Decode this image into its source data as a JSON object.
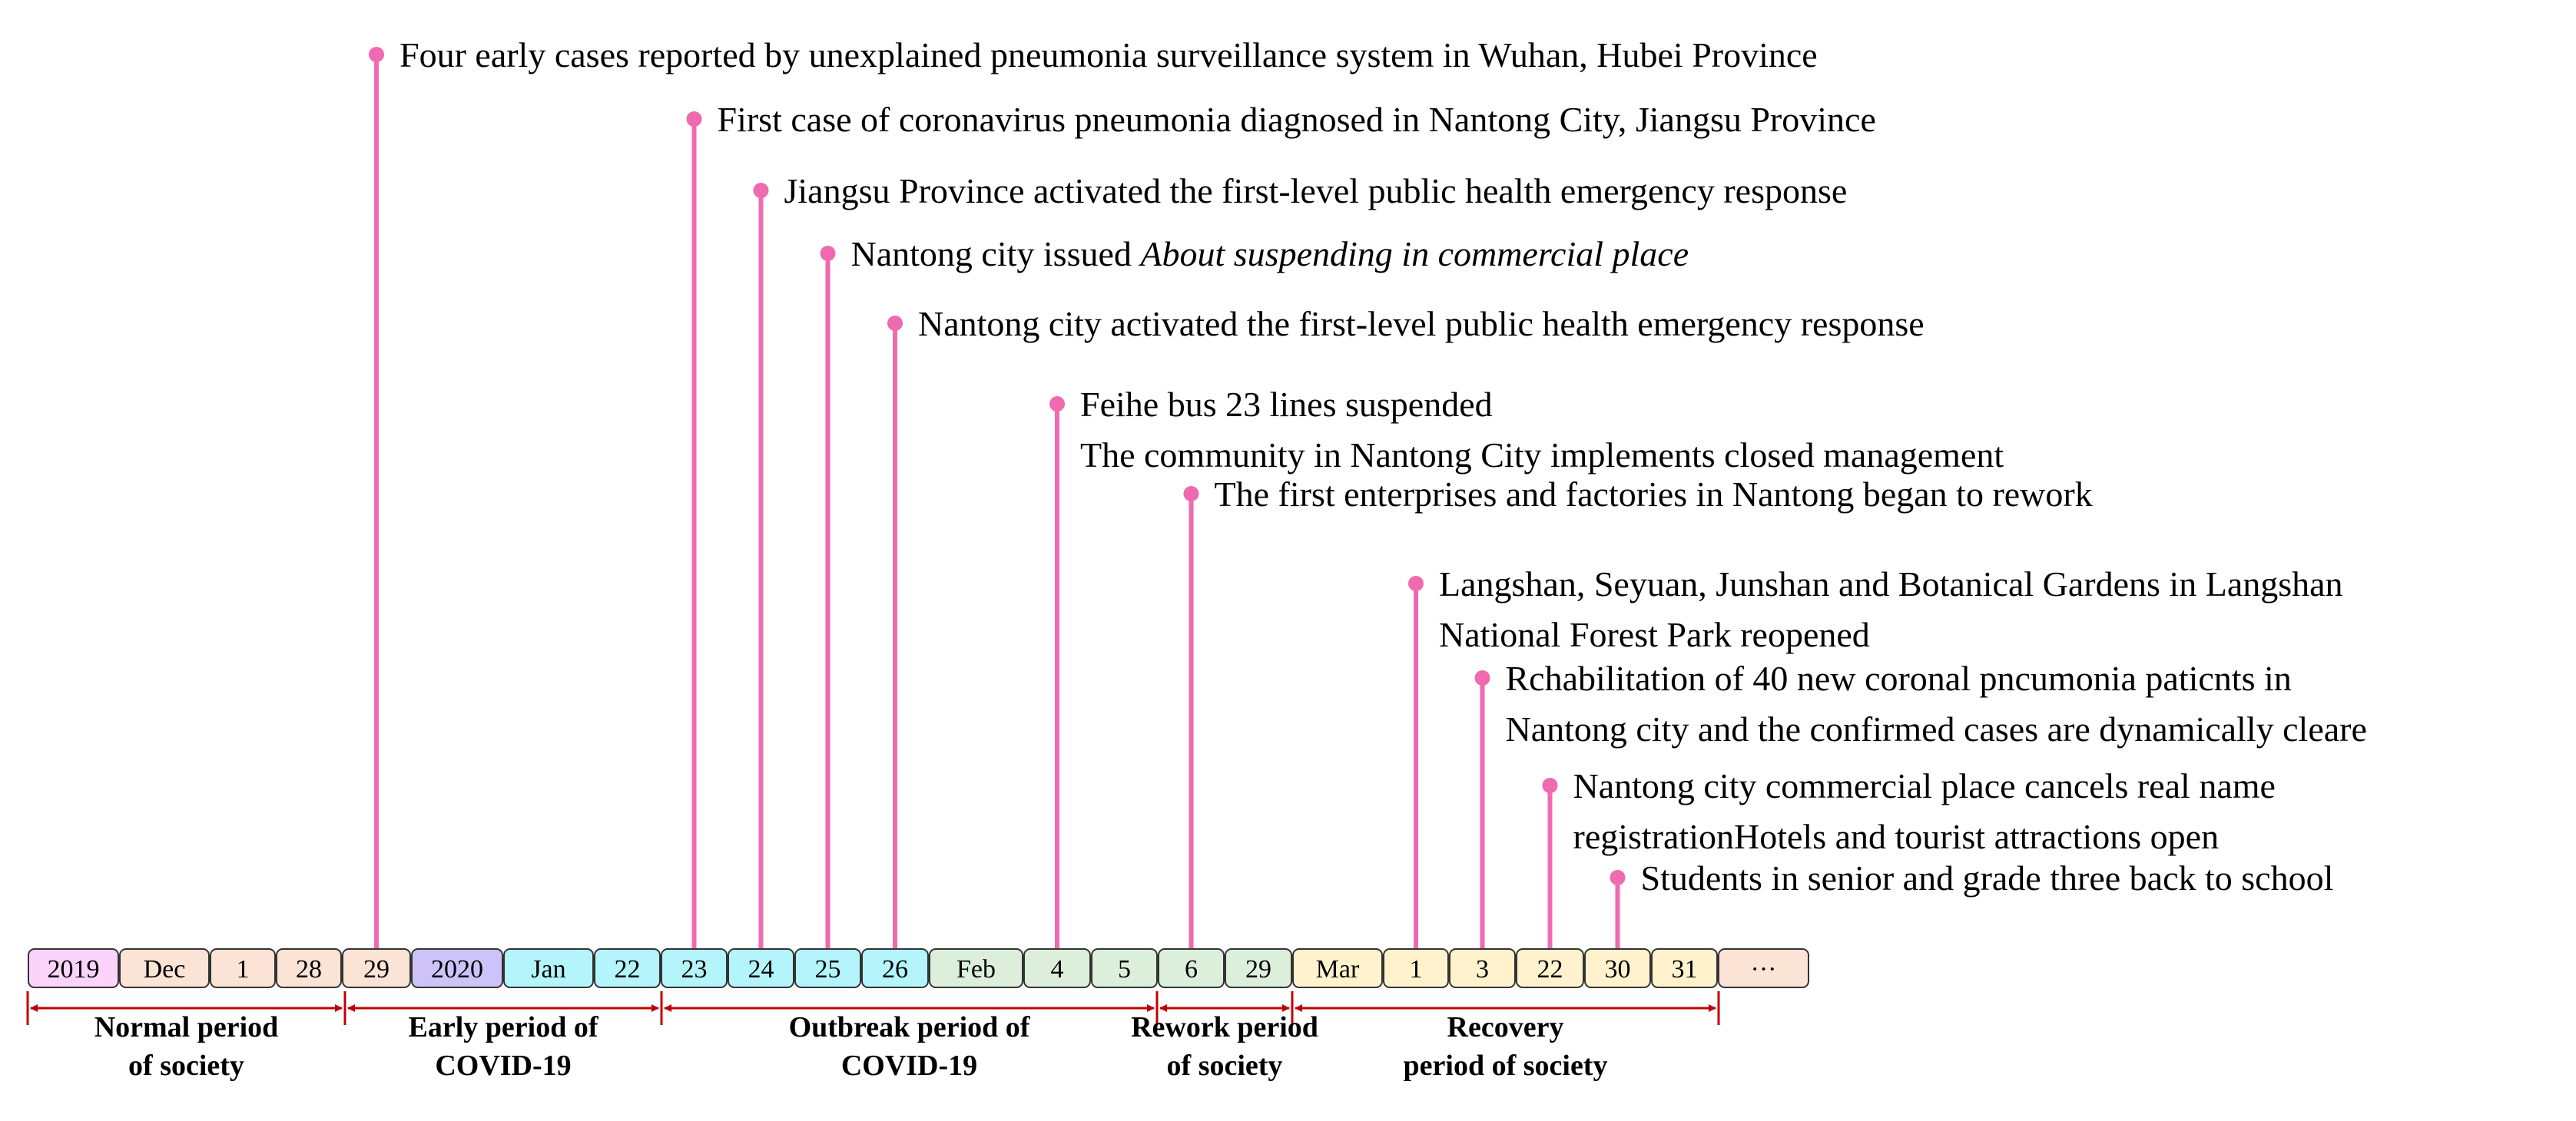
{
  "colors": {
    "stem": "#f06aaf",
    "bracket": "#c00000",
    "cell_border": "#333333"
  },
  "cells": [
    {
      "label": "2019",
      "color": "#fbd3fb"
    },
    {
      "label": "Dec",
      "color": "#fbe3d6"
    },
    {
      "label": "1",
      "color": "#fbe3d6"
    },
    {
      "label": "28",
      "color": "#fbe3d6"
    },
    {
      "label": "29",
      "color": "#fbe3d6"
    },
    {
      "label": "2020",
      "color": "#cdc3f8"
    },
    {
      "label": "Jan",
      "color": "#b3f5fb"
    },
    {
      "label": "22",
      "color": "#b3f5fb"
    },
    {
      "label": "23",
      "color": "#b3f5fb"
    },
    {
      "label": "24",
      "color": "#b3f5fb"
    },
    {
      "label": "25",
      "color": "#b3f5fb"
    },
    {
      "label": "26",
      "color": "#b3f5fb"
    },
    {
      "label": "Feb",
      "color": "#dcefdb"
    },
    {
      "label": "4",
      "color": "#dcefdb"
    },
    {
      "label": "5",
      "color": "#dcefdb"
    },
    {
      "label": "6",
      "color": "#dcefdb"
    },
    {
      "label": "29",
      "color": "#dcefdb"
    },
    {
      "label": "Mar",
      "color": "#fff2cc"
    },
    {
      "label": "1",
      "color": "#fff2cc"
    },
    {
      "label": "3",
      "color": "#fff2cc"
    },
    {
      "label": "22",
      "color": "#fff2cc"
    },
    {
      "label": "30",
      "color": "#fff2cc"
    },
    {
      "label": "31",
      "color": "#fff2cc"
    },
    {
      "label": "···",
      "color": "#fbe3d6"
    }
  ],
  "events": [
    {
      "cell": 4,
      "lines": [
        "Four early cases reported by unexplained pneumonia surveillance system in Wuhan, Hubei Province"
      ]
    },
    {
      "cell": 8,
      "lines": [
        "First case of coronavirus pneumonia diagnosed in Nantong City, Jiangsu Province"
      ]
    },
    {
      "cell": 9,
      "lines": [
        "Jiangsu Province activated the first-level public health emergency response"
      ]
    },
    {
      "cell": 10,
      "prefix": "Nantong city issued ",
      "italic": "About suspending in commercial place",
      "lines": []
    },
    {
      "cell": 11,
      "lines": [
        "Nantong city activated the first-level public health emergency response"
      ]
    },
    {
      "cell": 13,
      "lines": [
        "Feihe bus 23 lines suspended",
        "The community in Nantong City implements closed management"
      ]
    },
    {
      "cell": 15,
      "lines": [
        "The first enterprises and factories in Nantong began to rework"
      ]
    },
    {
      "cell": 18,
      "lines": [
        "Langshan, Seyuan, Junshan and Botanical Gardens in Langshan",
        "National Forest Park reopened"
      ]
    },
    {
      "cell": 19,
      "lines": [
        "Rchabilitation of 40 new coronal pncumonia paticnts in",
        "Nantong city and the confirmed cases are dynamically cleare"
      ]
    },
    {
      "cell": 20,
      "lines": [
        "Nantong city commercial place cancels real name",
        "registrationHotels and tourist attractions open"
      ]
    },
    {
      "cell": 21,
      "lines": [
        "Students in senior and grade three back to school"
      ]
    }
  ],
  "periods": [
    {
      "lines": [
        "Normal period",
        "of society"
      ]
    },
    {
      "lines": [
        "Early period of",
        "COVID-19"
      ]
    },
    {
      "lines": [
        "Outbreak period of",
        "COVID-19"
      ]
    },
    {
      "lines": [
        "Rework period",
        "of society"
      ]
    },
    {
      "lines": [
        "Recovery",
        "period of society"
      ]
    }
  ]
}
